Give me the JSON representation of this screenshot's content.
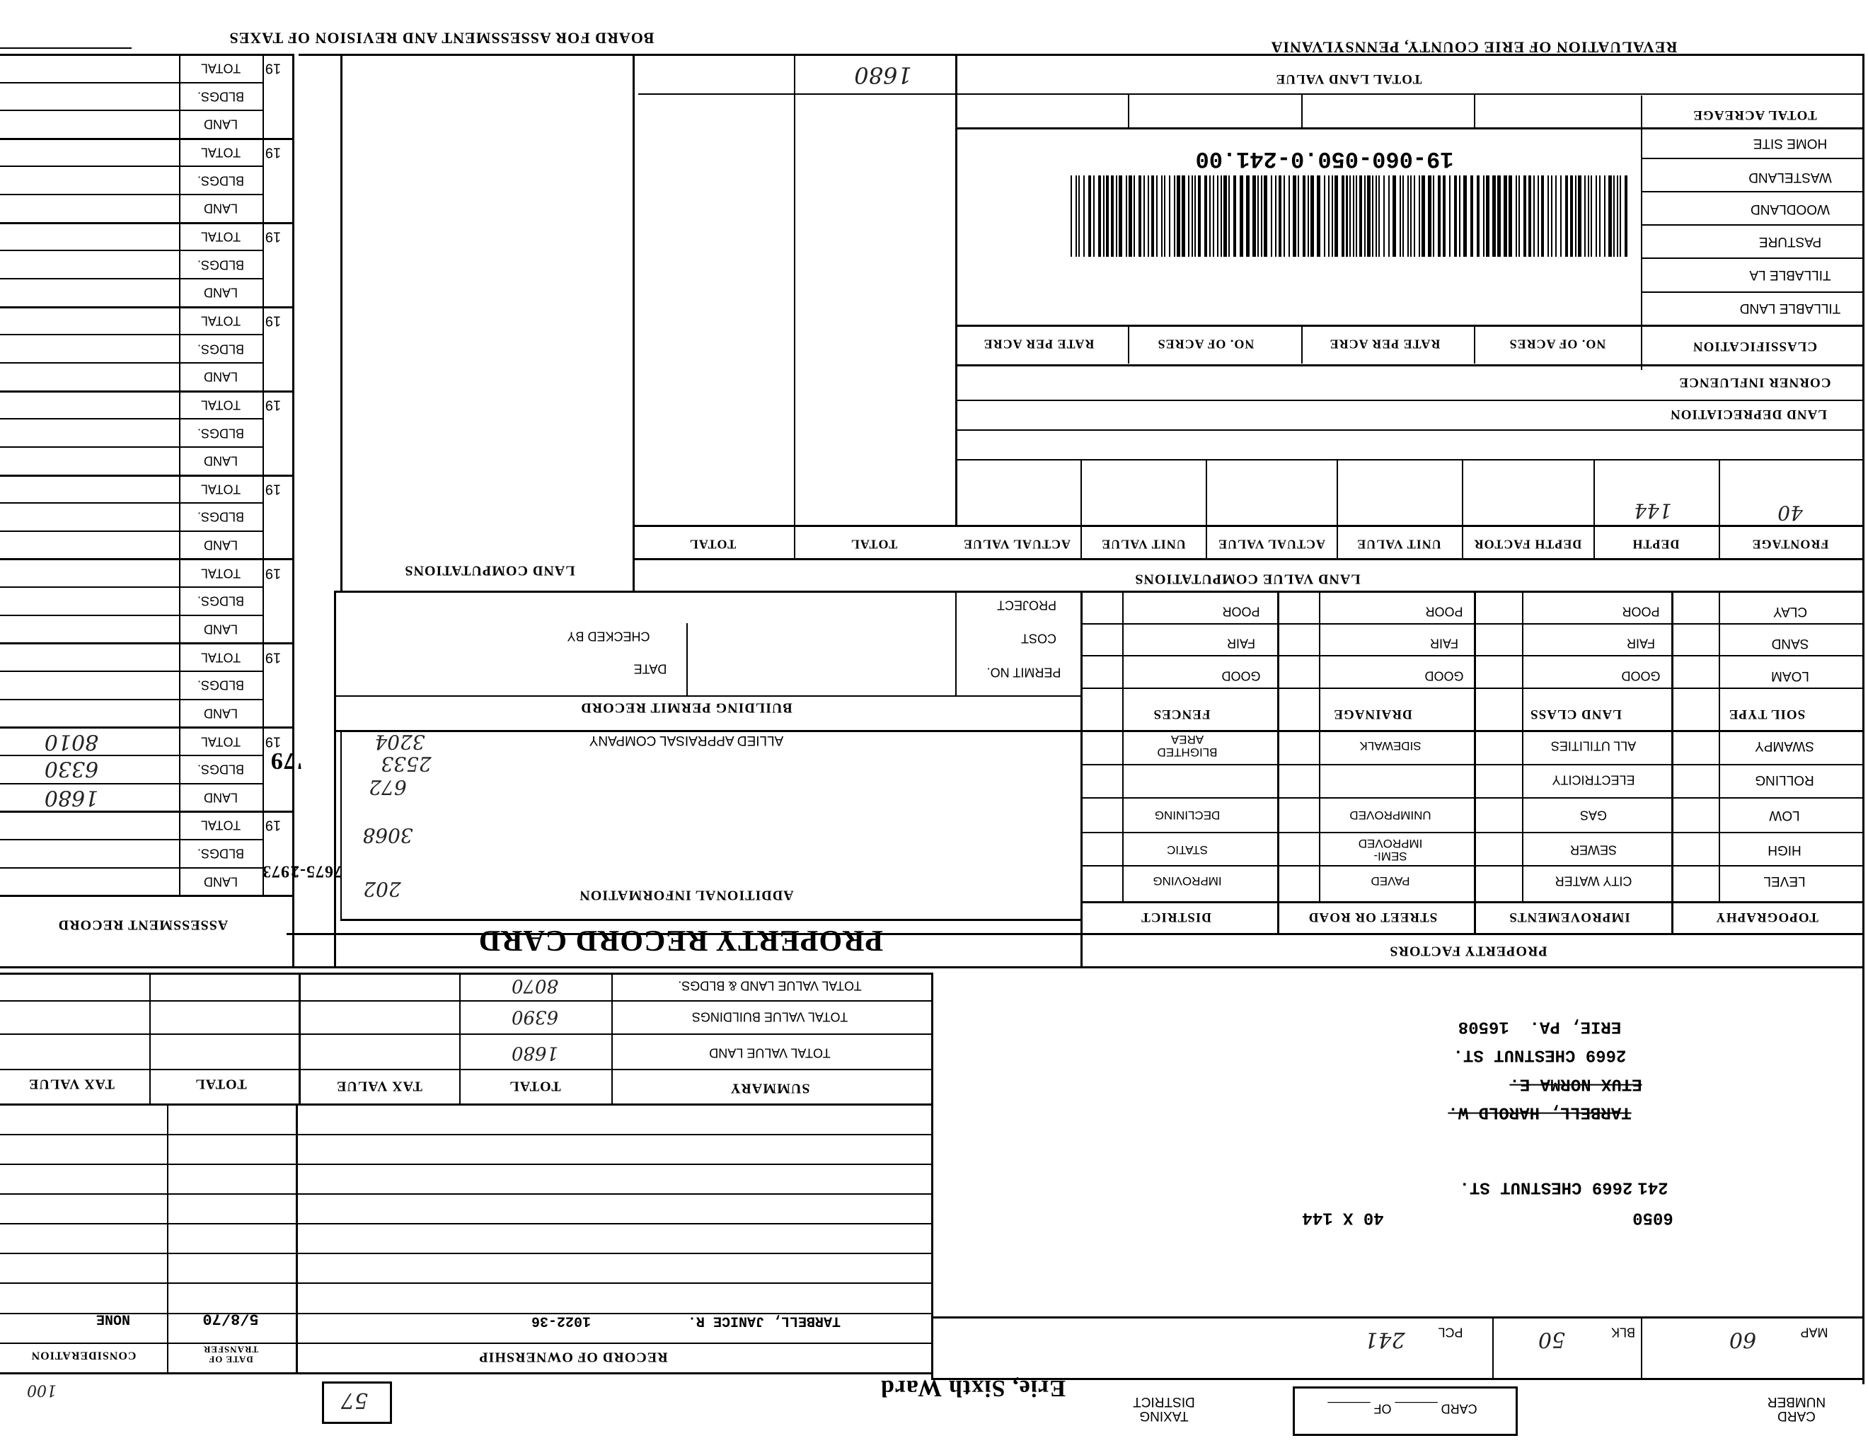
{
  "header": {
    "title_right": "REVALUATION OF ERIE COUNTY, PENNSYLVANIA",
    "title_left": "BOARD FOR ASSESSMENT AND REVISION OF TAXES"
  },
  "land": {
    "total_land_value_label": "TOTAL LAND VALUE",
    "total_land_value": "1680",
    "total_acreage": "TOTAL ACREAGE",
    "rows": [
      "HOME SITE",
      "WASTELAND",
      "WOODLAND",
      "PASTURE",
      "TILLABLE LA",
      "TILLABLE LAND"
    ],
    "classification": "CLASSIFICATION",
    "col_heads": [
      "NO. OF ACRES",
      "RATE PER ACRE",
      "NO. OF ACRES",
      "RATE PER ACRE"
    ],
    "parcel_id": "19-060-050.0-241.00",
    "corner_influence": "CORNER INFLUENCE",
    "land_depreciation": "LAND DEPRECIATION"
  },
  "computations": {
    "title": "LAND VALUE COMPUTATIONS",
    "left_title": "LAND COMPUTATIONS",
    "columns": [
      "FRONTAGE",
      "DEPTH",
      "DEPTH FACTOR",
      "UNIT VALUE",
      "ACTUAL VALUE",
      "UNIT VALUE",
      "ACTUAL VALUE",
      "TOTAL",
      "TOTAL"
    ],
    "frontage": "40",
    "depth": "144"
  },
  "soil": {
    "headers": [
      "SOIL TYPE",
      "LAND CLASS",
      "DRAINAGE",
      "FENCES"
    ],
    "soil_types": [
      "CLAY",
      "SAND",
      "LOAM"
    ],
    "ratings": [
      "POOR",
      "FAIR",
      "GOOD"
    ]
  },
  "property_factors": {
    "title": "PROPERTY FACTORS",
    "headers": [
      "TOPOGRAPHY",
      "IMPROVEMENTS",
      "STREET OR ROAD",
      "DISTRICT"
    ],
    "topography": [
      "SWAMPY",
      "ROLLING",
      "LOW",
      "HIGH",
      "LEVEL"
    ],
    "improvements": [
      "ALL UTILITIES",
      "ELECTRICITY",
      "GAS",
      "SEWER",
      "CITY WATER"
    ],
    "street": [
      "SIDEWALK",
      "",
      "UNIMPROVED",
      "SEMI-\nIMPROVED",
      "PAVED"
    ],
    "district": [
      "BLIGHTED\nAREA",
      "",
      "DECLINING",
      "STATIC",
      "IMPROVING"
    ]
  },
  "permit": {
    "title": "BUILDING PERMIT RECORD",
    "permit_no": "PERMIT NO.",
    "date": "DATE",
    "cost": "COST",
    "checked_by": "CHECKED BY",
    "project": "PROJECT"
  },
  "additional": {
    "company": "ALLIED APPRAISAL COMPANY",
    "title": "ADDITIONAL INFORMATION",
    "card_title": "PROPERTY RECORD CARD",
    "notes": [
      "3204",
      "2533",
      "672",
      "3068",
      "202"
    ],
    "stamps": [
      "'79",
      "1973",
      "7675-2"
    ]
  },
  "assessment": {
    "title": "ASSESSMENT RECORD",
    "year_prefix": "19",
    "row_labels": [
      "TOTAL",
      "BLDGS.",
      "LAND"
    ],
    "entry_1979": {
      "total": "8010",
      "bldgs": "6330",
      "land": "1680"
    }
  },
  "summary": {
    "title": "SUMMARY",
    "col_total": "TOTAL",
    "col_tax_value": "TAX VALUE",
    "rows": [
      "TOTAL VALUE LAND & BLDGS.",
      "TOTAL VALUE BUILDINGS",
      "TOTAL VALUE LAND"
    ],
    "values": [
      "8070",
      "6390",
      "1680"
    ]
  },
  "ownership": {
    "title": "RECORD OF OWNERSHIP",
    "date_of_transfer": "DATE OF\nTRANSFER",
    "consideration": "CONSIDERATION",
    "owner": "TARBELL, JANICE R.",
    "deed": "1022-36",
    "date": "5/8/70",
    "amount": "NONE"
  },
  "address": {
    "prior_owner_1": "TARBELL, HAROLD W.",
    "prior_owner_2": "ETUX NORMA E.",
    "street": "2669 CHESTNUT ST.",
    "city": "ERIE, PA.  16508",
    "parcel": "241",
    "location": "2669 CHESTNUT ST.",
    "ward_code": "6050",
    "dimensions": "40 X 144"
  },
  "footer": {
    "map_label": "MAP",
    "map": "60",
    "blk_label": "BLK",
    "blk": "50",
    "pcl_label": "PCL",
    "pcl": "241",
    "card_number_label": "CARD\nNUMBER",
    "card_of": "CARD ______ OF ______",
    "taxing_district_label": "TAXING\nDISTRICT",
    "taxing_district": "Erie, Sixth Ward",
    "stamp_number": "57",
    "corner_note": "100"
  }
}
